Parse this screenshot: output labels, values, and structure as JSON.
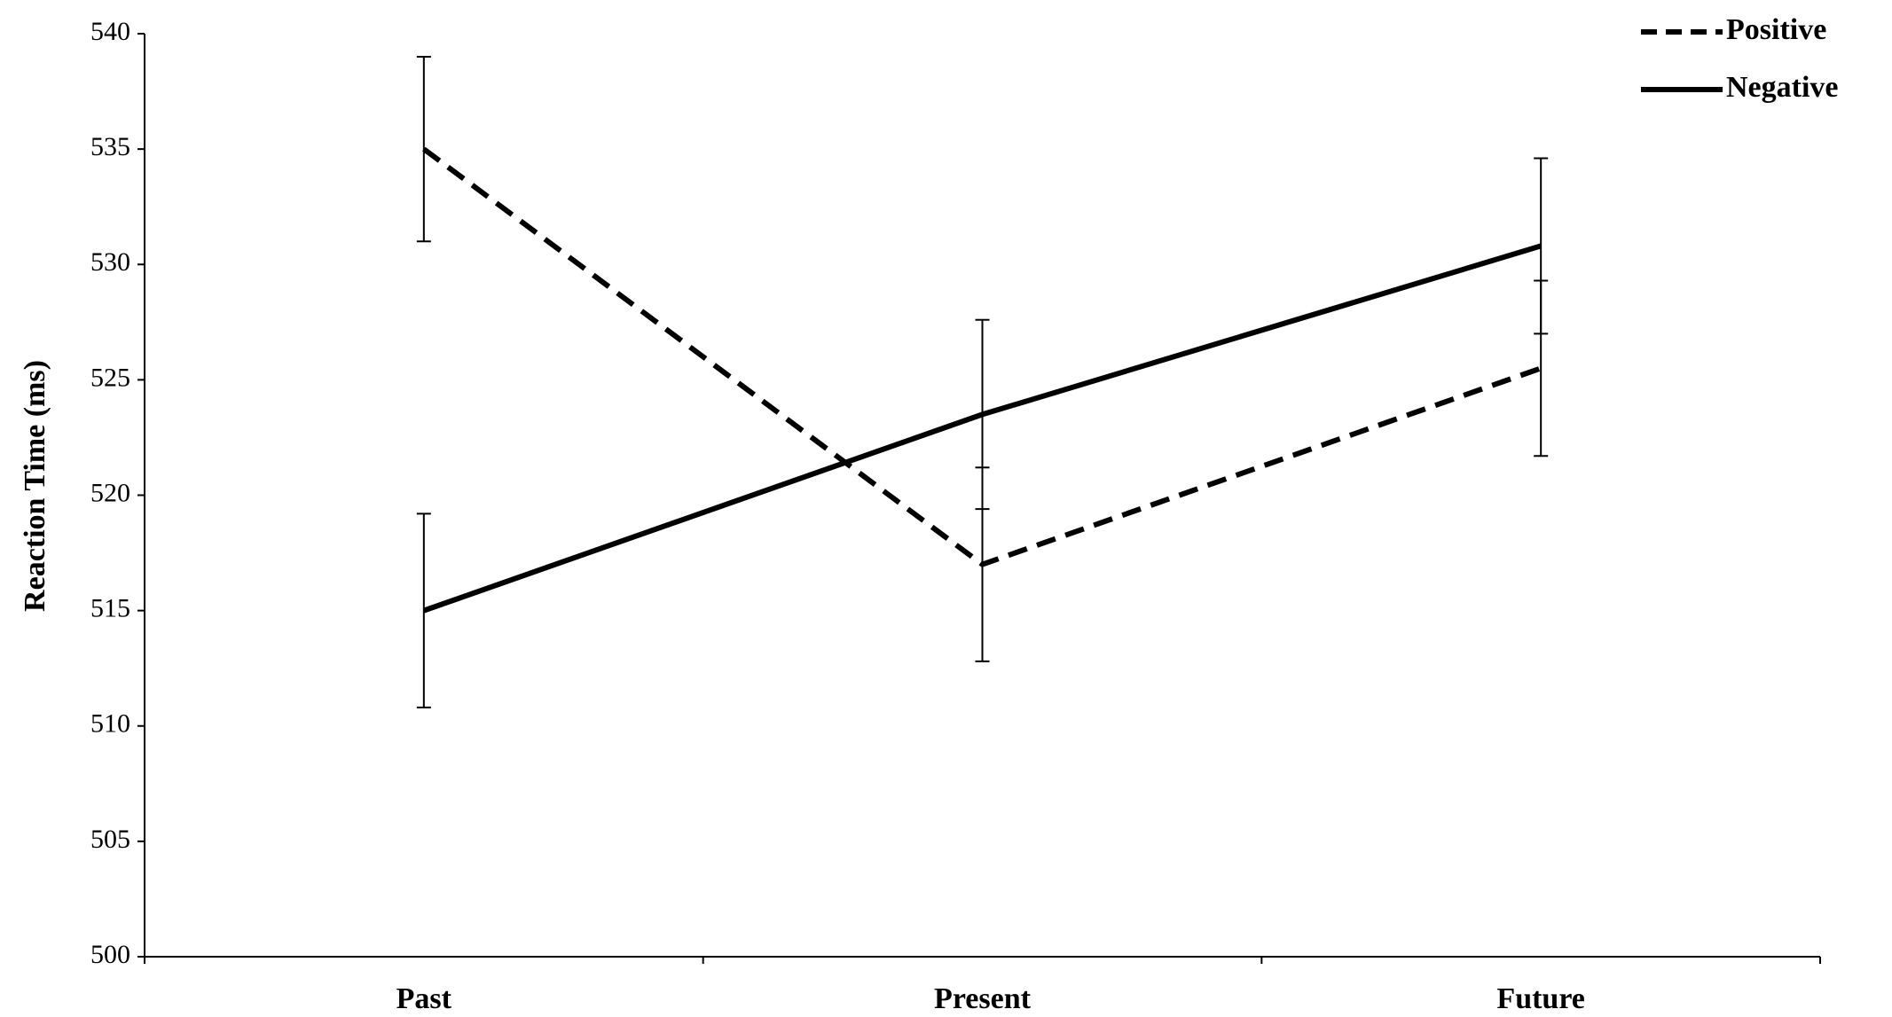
{
  "chart_data": {
    "type": "line",
    "y_label": "Reaction Time (ms)",
    "categories": [
      "Past",
      "Present",
      "Future"
    ],
    "series": [
      {
        "name": "Positive",
        "color": "#000000",
        "dash": "dashed",
        "values": [
          535,
          517,
          525.5
        ],
        "errors": [
          4,
          4.2,
          3.8
        ]
      },
      {
        "name": "Negative",
        "color": "#000000",
        "dash": "solid",
        "values": [
          515,
          523.5,
          530.8
        ],
        "errors": [
          4.2,
          4.1,
          3.8
        ]
      }
    ],
    "ylim": [
      500,
      540
    ],
    "yticks": [
      500,
      505,
      510,
      515,
      520,
      525,
      530,
      535,
      540
    ],
    "grid": false,
    "legend": "top-right"
  }
}
